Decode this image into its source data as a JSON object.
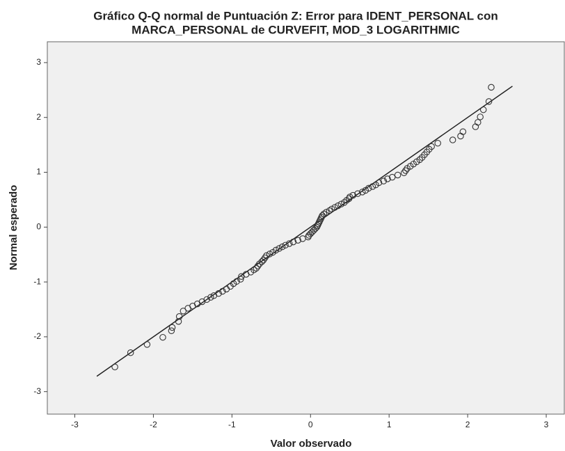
{
  "chart_data": {
    "type": "scatter",
    "title": [
      "Gráfico Q-Q normal de Puntuación Z:  Error para IDENT_PERSONAL con",
      "MARCA_PERSONAL de CURVEFIT, MOD_3 LOGARITHMIC"
    ],
    "x_label": "Valor observado",
    "y_label": "Normal esperado",
    "xlim": [
      -3.35,
      3.23
    ],
    "ylim": [
      -3.41,
      3.38
    ],
    "xticks": [
      -3,
      -2,
      -1,
      0,
      1,
      2,
      3
    ],
    "yticks": [
      -3,
      -2,
      -1,
      0,
      1,
      2,
      3
    ],
    "background": "#f0f0f0",
    "reference_line": {
      "x": [
        -2.72,
        2.57
      ],
      "y": [
        -2.72,
        2.57
      ],
      "color": "#222222"
    },
    "series": [
      {
        "color": "#333333",
        "x": [
          -2.49,
          -2.29,
          -2.08,
          -1.88,
          -1.77,
          -1.76,
          -1.68,
          -1.67,
          -1.62,
          -1.56,
          -1.5,
          -1.44,
          -1.38,
          -1.32,
          -1.27,
          -1.23,
          -1.17,
          -1.12,
          -1.07,
          -1.02,
          -0.98,
          -0.94,
          -0.89,
          -0.88,
          -0.82,
          -0.76,
          -0.72,
          -0.69,
          -0.67,
          -0.65,
          -0.62,
          -0.6,
          -0.58,
          -0.56,
          -0.52,
          -0.48,
          -0.44,
          -0.4,
          -0.36,
          -0.32,
          -0.27,
          -0.22,
          -0.16,
          -0.1,
          -0.03,
          -0.02,
          0,
          0.02,
          0.04,
          0.06,
          0.08,
          0.09,
          0.1,
          0.11,
          0.12,
          0.13,
          0.14,
          0.15,
          0.17,
          0.2,
          0.24,
          0.27,
          0.31,
          0.35,
          0.39,
          0.43,
          0.46,
          0.49,
          0.5,
          0.54,
          0.6,
          0.66,
          0.7,
          0.74,
          0.79,
          0.83,
          0.87,
          0.93,
          0.98,
          1.04,
          1.11,
          1.19,
          1.21,
          1.23,
          1.27,
          1.31,
          1.35,
          1.39,
          1.42,
          1.45,
          1.48,
          1.51,
          1.54,
          1.62,
          1.81,
          1.91,
          1.94,
          2.1,
          2.13,
          2.16,
          2.2,
          2.27,
          2.3
        ],
        "values": [
          -2.55,
          -2.29,
          -2.14,
          -2.01,
          -1.89,
          -1.83,
          -1.72,
          -1.63,
          -1.53,
          -1.48,
          -1.44,
          -1.4,
          -1.36,
          -1.32,
          -1.28,
          -1.25,
          -1.21,
          -1.17,
          -1.13,
          -1.08,
          -1.03,
          -0.99,
          -0.95,
          -0.9,
          -0.86,
          -0.82,
          -0.78,
          -0.75,
          -0.71,
          -0.67,
          -0.63,
          -0.6,
          -0.56,
          -0.52,
          -0.49,
          -0.46,
          -0.42,
          -0.39,
          -0.36,
          -0.33,
          -0.3,
          -0.27,
          -0.24,
          -0.21,
          -0.18,
          -0.15,
          -0.12,
          -0.09,
          -0.06,
          -0.03,
          0,
          0.03,
          0.06,
          0.09,
          0.12,
          0.15,
          0.18,
          0.21,
          0.24,
          0.27,
          0.3,
          0.33,
          0.36,
          0.39,
          0.42,
          0.45,
          0.49,
          0.52,
          0.55,
          0.58,
          0.61,
          0.64,
          0.67,
          0.71,
          0.74,
          0.77,
          0.81,
          0.84,
          0.88,
          0.91,
          0.95,
          0.99,
          1.03,
          1.07,
          1.11,
          1.15,
          1.19,
          1.23,
          1.27,
          1.32,
          1.37,
          1.42,
          1.47,
          1.53,
          1.59,
          1.66,
          1.74,
          1.83,
          1.91,
          2.01,
          2.14,
          2.29,
          2.55
        ]
      }
    ]
  }
}
